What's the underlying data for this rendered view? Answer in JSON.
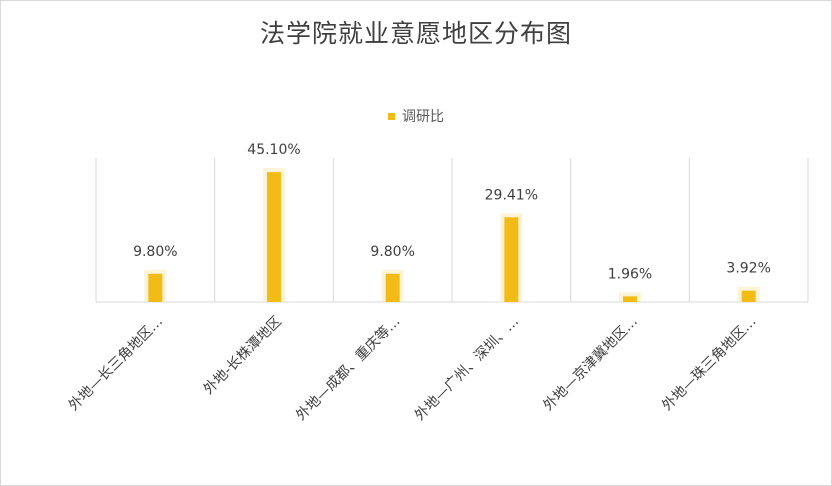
{
  "chart_data": {
    "type": "bar",
    "title": "法学院就业意愿地区分布图",
    "legend": {
      "position": "top",
      "entries": [
        "调研比"
      ]
    },
    "categories": [
      "外地—长三角地区…",
      "外地-长株潭地区",
      "外地—成都、重庆等…",
      "外地—广州、深圳、…",
      "外地—京津冀地区…",
      "外地—珠三角地区…"
    ],
    "series": [
      {
        "name": "调研比",
        "values": [
          9.8,
          45.1,
          9.8,
          29.41,
          1.96,
          3.92
        ],
        "data_labels": [
          "9.80%",
          "45.10%",
          "9.80%",
          "29.41%",
          "1.96%",
          "3.92%"
        ],
        "color": "#f2bb16"
      }
    ],
    "ylim": [
      0,
      50
    ],
    "grid": "vertical category separators",
    "xlabel": "",
    "ylabel": ""
  }
}
